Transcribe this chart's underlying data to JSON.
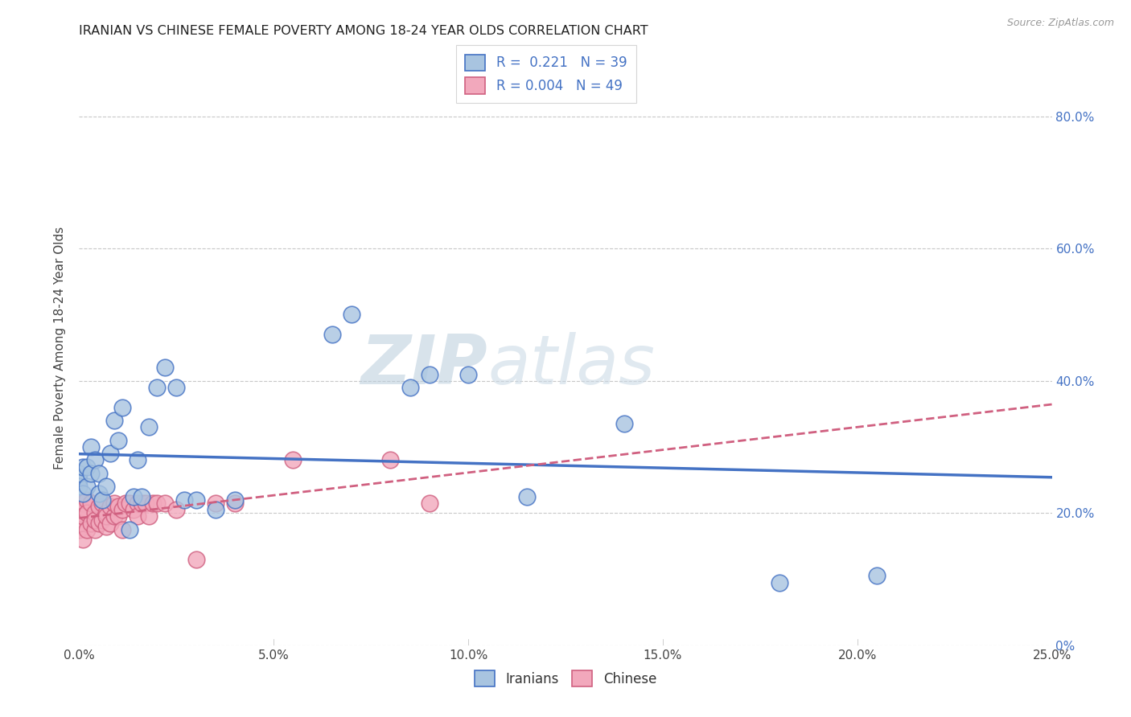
{
  "title": "IRANIAN VS CHINESE FEMALE POVERTY AMONG 18-24 YEAR OLDS CORRELATION CHART",
  "source": "Source: ZipAtlas.com",
  "ylabel_label": "Female Poverty Among 18-24 Year Olds",
  "legend_labels": [
    "Iranians",
    "Chinese"
  ],
  "R_iranian": "0.221",
  "N_iranian": 39,
  "R_chinese": "0.004",
  "N_chinese": 49,
  "color_iranian": "#a8c4e0",
  "color_chinese": "#f2a8bc",
  "line_color_iranian": "#4472c4",
  "line_color_chinese": "#d06080",
  "iranian_x": [
    0.0,
    0.0,
    0.0,
    0.001,
    0.001,
    0.002,
    0.002,
    0.003,
    0.003,
    0.004,
    0.005,
    0.005,
    0.006,
    0.007,
    0.008,
    0.009,
    0.01,
    0.011,
    0.013,
    0.014,
    0.015,
    0.016,
    0.018,
    0.02,
    0.022,
    0.025,
    0.027,
    0.03,
    0.035,
    0.04,
    0.065,
    0.07,
    0.085,
    0.09,
    0.1,
    0.115,
    0.14,
    0.18,
    0.205
  ],
  "iranian_y": [
    0.25,
    0.24,
    0.26,
    0.23,
    0.27,
    0.24,
    0.27,
    0.26,
    0.3,
    0.28,
    0.23,
    0.26,
    0.22,
    0.24,
    0.29,
    0.34,
    0.31,
    0.36,
    0.175,
    0.225,
    0.28,
    0.225,
    0.33,
    0.39,
    0.42,
    0.39,
    0.22,
    0.22,
    0.205,
    0.22,
    0.47,
    0.5,
    0.39,
    0.41,
    0.41,
    0.225,
    0.335,
    0.095,
    0.105
  ],
  "chinese_x": [
    0.0,
    0.0,
    0.0,
    0.0,
    0.001,
    0.001,
    0.001,
    0.001,
    0.002,
    0.002,
    0.002,
    0.003,
    0.003,
    0.004,
    0.004,
    0.004,
    0.005,
    0.005,
    0.006,
    0.006,
    0.007,
    0.007,
    0.007,
    0.008,
    0.008,
    0.009,
    0.009,
    0.01,
    0.01,
    0.011,
    0.011,
    0.012,
    0.013,
    0.014,
    0.015,
    0.015,
    0.016,
    0.017,
    0.018,
    0.019,
    0.02,
    0.022,
    0.025,
    0.03,
    0.035,
    0.04,
    0.055,
    0.08,
    0.09
  ],
  "chinese_y": [
    0.185,
    0.2,
    0.185,
    0.175,
    0.205,
    0.215,
    0.195,
    0.16,
    0.22,
    0.2,
    0.175,
    0.185,
    0.215,
    0.2,
    0.175,
    0.19,
    0.21,
    0.185,
    0.215,
    0.19,
    0.2,
    0.18,
    0.195,
    0.185,
    0.21,
    0.195,
    0.215,
    0.195,
    0.21,
    0.205,
    0.175,
    0.215,
    0.215,
    0.205,
    0.215,
    0.195,
    0.215,
    0.215,
    0.195,
    0.215,
    0.215,
    0.215,
    0.205,
    0.13,
    0.215,
    0.215,
    0.28,
    0.28,
    0.215
  ],
  "xlim": [
    0.0,
    0.25
  ],
  "ylim": [
    0.0,
    0.9
  ],
  "watermark_zip": "ZIP",
  "watermark_atlas": "atlas",
  "bg_color": "#ffffff",
  "grid_color": "#c8c8c8"
}
